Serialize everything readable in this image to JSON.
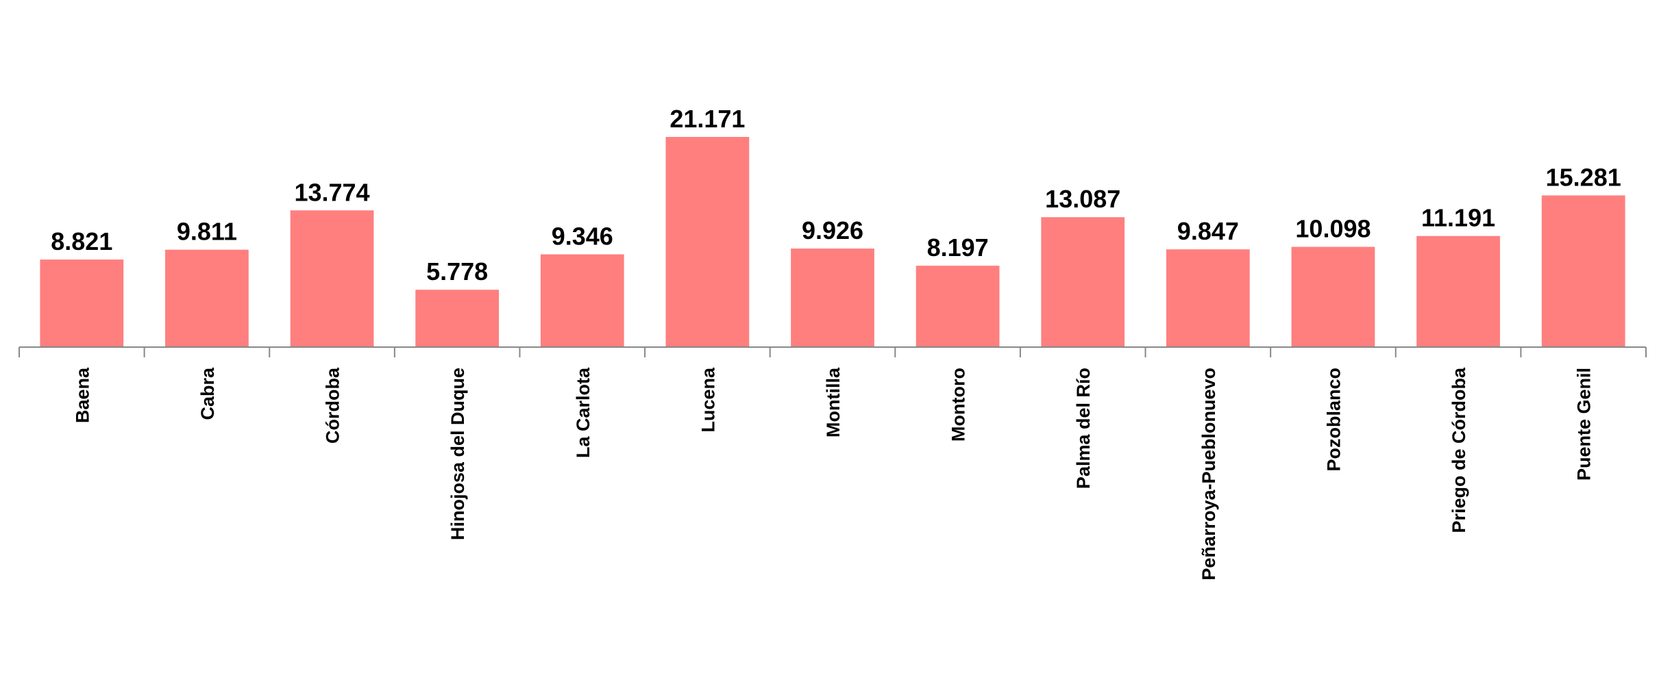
{
  "chart_data": {
    "type": "bar",
    "categories": [
      "Baena",
      "Cabra",
      "Córdoba",
      "Hinojosa del Duque",
      "La Carlota",
      "Lucena",
      "Montilla",
      "Montoro",
      "Palma del Río",
      "Peñarroya-Pueblonuevo",
      "Pozoblanco",
      "Priego de Córdoba",
      "Puente Genil"
    ],
    "values": [
      8.821,
      9.811,
      13.774,
      5.778,
      9.346,
      21.171,
      9.926,
      8.197,
      13.087,
      9.847,
      10.098,
      11.191,
      15.281
    ],
    "color": "#ff7f7f"
  }
}
